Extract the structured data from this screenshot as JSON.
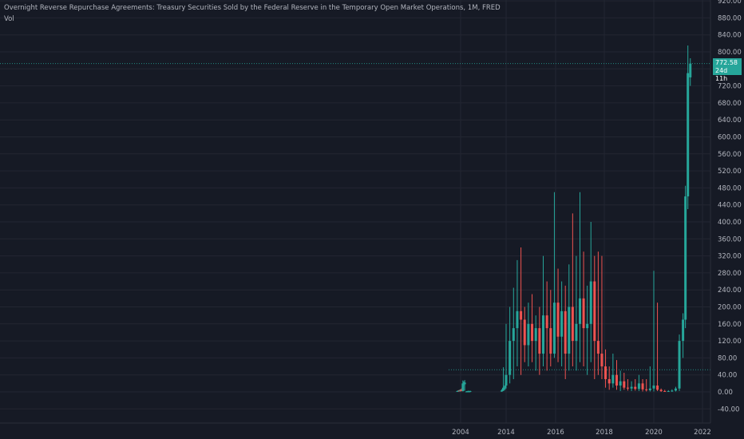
{
  "legend": {
    "title": "Overnight Reverse Repurchase Agreements: Treasury Securities Sold by the Federal Reserve in the Temporary Open Market Operations, 1M, FRED",
    "volume_label": "Vol"
  },
  "last_price": {
    "value": "772.58",
    "countdown": "24d 11h",
    "color": "#26a69a"
  },
  "colors": {
    "background": "#161a25",
    "up": "#26a69a",
    "down": "#ef5350",
    "grid": "#232632",
    "axis_text": "#b2b5be"
  },
  "chart_data": {
    "type": "candlestick",
    "yaxis": {
      "ticks": [
        "920.00",
        "880.00",
        "840.00",
        "800.00",
        "760.00",
        "720.00",
        "680.00",
        "640.00",
        "600.00",
        "560.00",
        "520.00",
        "480.00",
        "440.00",
        "400.00",
        "360.00",
        "320.00",
        "280.00",
        "240.00",
        "200.00",
        "160.00",
        "120.00",
        "80.00",
        "40.00",
        "0.00",
        "-40.00"
      ],
      "range": [
        -70,
        935
      ]
    },
    "xaxis": {
      "ticks": [
        "2004",
        "2014",
        "2016",
        "2018",
        "2020",
        "2022"
      ]
    },
    "horizontal_lines": [
      772.58,
      52
    ],
    "series": [
      {
        "t": "2003.30",
        "o": 1,
        "h": 3,
        "l": 0,
        "c": 2
      },
      {
        "t": "2003.50",
        "o": 2,
        "h": 4,
        "l": 1,
        "c": 3
      },
      {
        "t": "2003.70",
        "o": 3,
        "h": 5,
        "l": 1,
        "c": 2
      },
      {
        "t": "2003.90",
        "o": 2,
        "h": 6,
        "l": 1,
        "c": 4
      },
      {
        "t": "2004.10",
        "o": 4,
        "h": 7,
        "l": 1,
        "c": 2
      },
      {
        "t": "2004.30",
        "o": 5,
        "h": 9,
        "l": 2,
        "c": 2
      },
      {
        "t": "2004.50",
        "o": 2,
        "h": 27,
        "l": 1,
        "c": 20
      },
      {
        "t": "2004.70",
        "o": 20,
        "h": 25,
        "l": 15,
        "c": 22
      },
      {
        "t": "2004.90",
        "o": 18,
        "h": 28,
        "l": 3,
        "c": 22
      },
      {
        "t": "2005.30",
        "o": 1,
        "h": 2,
        "l": 0,
        "c": 1
      },
      {
        "t": "2005.50",
        "o": 1,
        "h": 2,
        "l": 0,
        "c": 1
      },
      {
        "t": "2005.70",
        "o": 1,
        "h": 3,
        "l": 0,
        "c": 2
      },
      {
        "t": "2005.90",
        "o": 1,
        "h": 2,
        "l": 0,
        "c": 1
      },
      {
        "t": "2006.10",
        "o": 1,
        "h": 3,
        "l": 0,
        "c": 2
      },
      {
        "t": "2013.00",
        "o": 2,
        "h": 4,
        "l": 0,
        "c": 3
      },
      {
        "t": "2013.20",
        "o": 3,
        "h": 8,
        "l": 1,
        "c": 6
      },
      {
        "t": "2013.40",
        "o": 5,
        "h": 58,
        "l": 2,
        "c": 10
      },
      {
        "t": "2013.60",
        "o": 8,
        "h": 12,
        "l": 3,
        "c": 10
      },
      {
        "t": "2013.80",
        "o": 10,
        "h": 20,
        "l": 5,
        "c": 15
      },
      {
        "t": "2014.00",
        "o": 15,
        "h": 160,
        "l": 8,
        "c": 40
      },
      {
        "t": "2014.15",
        "o": 40,
        "h": 200,
        "l": 20,
        "c": 120
      },
      {
        "t": "2014.30",
        "o": 120,
        "h": 245,
        "l": 30,
        "c": 150
      },
      {
        "t": "2014.45",
        "o": 150,
        "h": 310,
        "l": 60,
        "c": 190
      },
      {
        "t": "2014.60",
        "o": 190,
        "h": 340,
        "l": 40,
        "c": 170
      },
      {
        "t": "2014.75",
        "o": 170,
        "h": 200,
        "l": 70,
        "c": 110
      },
      {
        "t": "2014.90",
        "o": 110,
        "h": 210,
        "l": 60,
        "c": 160
      },
      {
        "t": "2015.05",
        "o": 160,
        "h": 230,
        "l": 70,
        "c": 120
      },
      {
        "t": "2015.20",
        "o": 120,
        "h": 180,
        "l": 50,
        "c": 150
      },
      {
        "t": "2015.35",
        "o": 150,
        "h": 200,
        "l": 40,
        "c": 90
      },
      {
        "t": "2015.50",
        "o": 90,
        "h": 320,
        "l": 60,
        "c": 180
      },
      {
        "t": "2015.65",
        "o": 180,
        "h": 260,
        "l": 50,
        "c": 150
      },
      {
        "t": "2015.80",
        "o": 150,
        "h": 240,
        "l": 60,
        "c": 90
      },
      {
        "t": "2015.95",
        "o": 90,
        "h": 470,
        "l": 80,
        "c": 210
      },
      {
        "t": "2016.10",
        "o": 210,
        "h": 290,
        "l": 70,
        "c": 130
      },
      {
        "t": "2016.25",
        "o": 130,
        "h": 260,
        "l": 60,
        "c": 190
      },
      {
        "t": "2016.40",
        "o": 190,
        "h": 250,
        "l": 30,
        "c": 90
      },
      {
        "t": "2016.55",
        "o": 90,
        "h": 300,
        "l": 50,
        "c": 200
      },
      {
        "t": "2016.70",
        "o": 200,
        "h": 420,
        "l": 60,
        "c": 120
      },
      {
        "t": "2016.85",
        "o": 120,
        "h": 320,
        "l": 50,
        "c": 160
      },
      {
        "t": "2017.00",
        "o": 160,
        "h": 470,
        "l": 70,
        "c": 220
      },
      {
        "t": "2017.15",
        "o": 220,
        "h": 330,
        "l": 60,
        "c": 150
      },
      {
        "t": "2017.30",
        "o": 150,
        "h": 250,
        "l": 40,
        "c": 160
      },
      {
        "t": "2017.45",
        "o": 160,
        "h": 400,
        "l": 70,
        "c": 260
      },
      {
        "t": "2017.60",
        "o": 260,
        "h": 320,
        "l": 30,
        "c": 120
      },
      {
        "t": "2017.75",
        "o": 120,
        "h": 330,
        "l": 40,
        "c": 90
      },
      {
        "t": "2017.90",
        "o": 90,
        "h": 320,
        "l": 30,
        "c": 60
      },
      {
        "t": "2018.05",
        "o": 60,
        "h": 100,
        "l": 10,
        "c": 30
      },
      {
        "t": "2018.20",
        "o": 30,
        "h": 60,
        "l": 5,
        "c": 20
      },
      {
        "t": "2018.35",
        "o": 20,
        "h": 90,
        "l": 10,
        "c": 40
      },
      {
        "t": "2018.50",
        "o": 40,
        "h": 75,
        "l": 5,
        "c": 15
      },
      {
        "t": "2018.65",
        "o": 15,
        "h": 50,
        "l": 2,
        "c": 25
      },
      {
        "t": "2018.80",
        "o": 25,
        "h": 45,
        "l": 5,
        "c": 10
      },
      {
        "t": "2018.95",
        "o": 10,
        "h": 30,
        "l": 3,
        "c": 8
      },
      {
        "t": "2019.10",
        "o": 8,
        "h": 25,
        "l": 2,
        "c": 12
      },
      {
        "t": "2019.25",
        "o": 12,
        "h": 30,
        "l": 3,
        "c": 7
      },
      {
        "t": "2019.40",
        "o": 7,
        "h": 40,
        "l": 2,
        "c": 20
      },
      {
        "t": "2019.55",
        "o": 20,
        "h": 30,
        "l": 1,
        "c": 6
      },
      {
        "t": "2019.70",
        "o": 6,
        "h": 30,
        "l": 1,
        "c": 4
      },
      {
        "t": "2019.85",
        "o": 4,
        "h": 60,
        "l": 1,
        "c": 8
      },
      {
        "t": "2020.00",
        "o": 8,
        "h": 285,
        "l": 1,
        "c": 15
      },
      {
        "t": "2020.15",
        "o": 15,
        "h": 210,
        "l": 2,
        "c": 5
      },
      {
        "t": "2020.30",
        "o": 5,
        "h": 8,
        "l": 0,
        "c": 2
      },
      {
        "t": "2020.45",
        "o": 2,
        "h": 5,
        "l": 0,
        "c": 1
      },
      {
        "t": "2020.60",
        "o": 1,
        "h": 4,
        "l": 0,
        "c": 2
      },
      {
        "t": "2020.75",
        "o": 2,
        "h": 6,
        "l": 0,
        "c": 3
      },
      {
        "t": "2020.90",
        "o": 3,
        "h": 12,
        "l": 1,
        "c": 8
      },
      {
        "t": "2021.05",
        "o": 8,
        "h": 135,
        "l": 2,
        "c": 120
      },
      {
        "t": "2021.20",
        "o": 120,
        "h": 185,
        "l": 80,
        "c": 170
      },
      {
        "t": "2021.30",
        "o": 170,
        "h": 485,
        "l": 150,
        "c": 460
      },
      {
        "t": "2021.40",
        "o": 460,
        "h": 815,
        "l": 430,
        "c": 750
      },
      {
        "t": "2021.50",
        "o": 740,
        "h": 785,
        "l": 720,
        "c": 772.58
      }
    ]
  }
}
